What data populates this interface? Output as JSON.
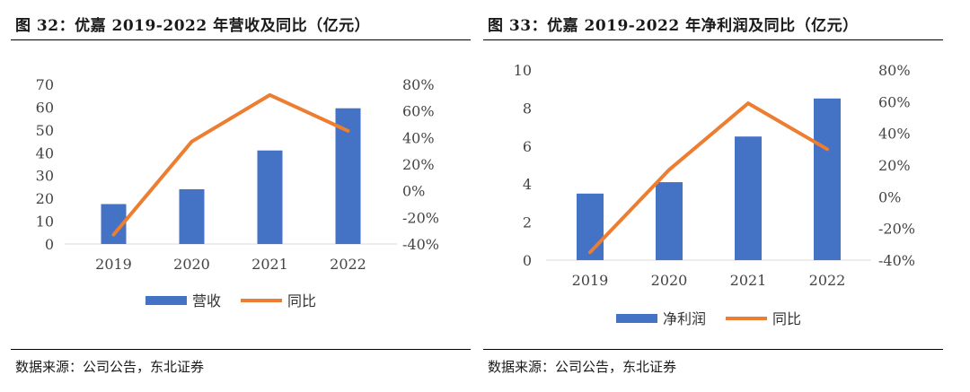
{
  "panels": [
    {
      "title": "图 32：优嘉 2019-2022 年营收及同比（亿元）",
      "source": "数据来源：公司公告，东北证券"
    },
    {
      "title": "图 33：优嘉 2019-2022 年净利润及同比（亿元）",
      "source": "数据来源：公司公告，东北证券"
    }
  ],
  "chart_data": [
    {
      "type": "bar",
      "categories": [
        "2019",
        "2020",
        "2021",
        "2022"
      ],
      "series": [
        {
          "name": "营收",
          "type": "bar",
          "axis": "left",
          "color": "#4472C4",
          "values": [
            17.5,
            24,
            41,
            59.5
          ]
        },
        {
          "name": "同比",
          "type": "line",
          "axis": "right",
          "color": "#ED7D31",
          "values": [
            -33,
            37,
            72,
            45
          ]
        }
      ],
      "y_left": {
        "min": 0,
        "max": 70,
        "ticks": [
          0,
          10,
          20,
          30,
          40,
          50,
          60,
          70
        ]
      },
      "y_right": {
        "min": -40,
        "max": 80,
        "ticks": [
          -40,
          -20,
          0,
          20,
          40,
          60,
          80
        ],
        "tick_labels": [
          "-40%",
          "-20%",
          "0%",
          "20%",
          "40%",
          "60%",
          "80%"
        ]
      },
      "legend_position": "bottom",
      "grid": false
    },
    {
      "type": "bar",
      "categories": [
        "2019",
        "2020",
        "2021",
        "2022"
      ],
      "series": [
        {
          "name": "净利润",
          "type": "bar",
          "axis": "left",
          "color": "#4472C4",
          "values": [
            3.5,
            4.1,
            6.5,
            8.5
          ]
        },
        {
          "name": "同比",
          "type": "line",
          "axis": "right",
          "color": "#ED7D31",
          "values": [
            -35,
            17,
            59,
            30
          ]
        }
      ],
      "y_left": {
        "min": 0,
        "max": 10,
        "ticks": [
          0,
          2,
          4,
          6,
          8,
          10
        ]
      },
      "y_right": {
        "min": -40,
        "max": 80,
        "ticks": [
          -40,
          -20,
          0,
          20,
          40,
          60,
          80
        ],
        "tick_labels": [
          "-40%",
          "-20%",
          "0%",
          "20%",
          "40%",
          "60%",
          "80%"
        ]
      },
      "legend_position": "bottom",
      "grid": false
    }
  ]
}
